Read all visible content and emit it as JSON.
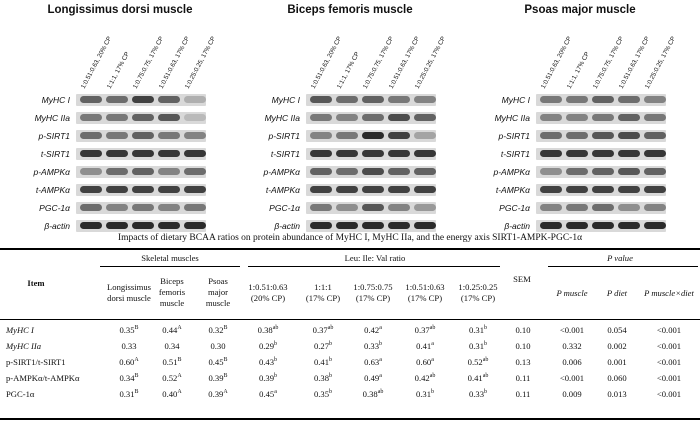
{
  "panels": [
    {
      "title": "Longissimus dorsi muscle",
      "lanes": [
        "1:0.51:0.63, 20% CP",
        "1:1:1, 17% CP",
        "1:0.75:0.75, 17% CP",
        "1:0.51:0.63, 17% CP",
        "1:0.25:0.25, 17% CP"
      ],
      "labels": [
        "MyHC I",
        "MyHC IIa",
        "p-SIRT1",
        "t-SIRT1",
        "p-AMPKα",
        "t-AMPKα",
        "PGC-1α",
        "β-actin"
      ],
      "band_intensity": [
        [
          0.6,
          0.55,
          0.75,
          0.6,
          0.25
        ],
        [
          0.5,
          0.5,
          0.6,
          0.65,
          0.2
        ],
        [
          0.55,
          0.5,
          0.6,
          0.5,
          0.45
        ],
        [
          0.8,
          0.8,
          0.8,
          0.8,
          0.8
        ],
        [
          0.4,
          0.55,
          0.6,
          0.45,
          0.55
        ],
        [
          0.75,
          0.75,
          0.75,
          0.75,
          0.75
        ],
        [
          0.55,
          0.45,
          0.5,
          0.45,
          0.5
        ],
        [
          0.85,
          0.85,
          0.85,
          0.85,
          0.85
        ]
      ]
    },
    {
      "title": "Biceps femoris muscle",
      "lanes": [
        "1:0.51:0.63, 20% CP",
        "1:1:1, 17% CP",
        "1:0.75:0.75, 17% CP",
        "1:0.51:0.63, 17% CP",
        "1:0.25:0.25, 17% CP"
      ],
      "labels": [
        "MyHC I",
        "MyHC IIa",
        "p-SIRT1",
        "t-SIRT1",
        "p-AMPKα",
        "t-AMPKα",
        "PGC-1α",
        "β-actin"
      ],
      "band_intensity": [
        [
          0.65,
          0.55,
          0.6,
          0.5,
          0.45
        ],
        [
          0.5,
          0.45,
          0.55,
          0.7,
          0.6
        ],
        [
          0.45,
          0.5,
          0.85,
          0.75,
          0.3
        ],
        [
          0.8,
          0.8,
          0.8,
          0.8,
          0.8
        ],
        [
          0.6,
          0.55,
          0.7,
          0.6,
          0.6
        ],
        [
          0.75,
          0.75,
          0.75,
          0.75,
          0.75
        ],
        [
          0.5,
          0.4,
          0.65,
          0.45,
          0.35
        ],
        [
          0.85,
          0.85,
          0.85,
          0.85,
          0.85
        ]
      ]
    },
    {
      "title": "Psoas major muscle",
      "lanes": [
        "1:0.51:0.63, 20% CP",
        "1:1:1, 17% CP",
        "1:0.75:0.75, 17% CP",
        "1:0.51:0.63, 17% CP",
        "1:0.25:0.25, 17% CP"
      ],
      "labels": [
        "MyHC I",
        "MyHC IIa",
        "p-SIRT1",
        "t-SIRT1",
        "p-AMPKα",
        "t-AMPKα",
        "PGC-1α",
        "β-actin"
      ],
      "band_intensity": [
        [
          0.5,
          0.5,
          0.6,
          0.55,
          0.45
        ],
        [
          0.45,
          0.45,
          0.5,
          0.6,
          0.5
        ],
        [
          0.55,
          0.55,
          0.65,
          0.7,
          0.6
        ],
        [
          0.8,
          0.8,
          0.8,
          0.8,
          0.8
        ],
        [
          0.4,
          0.55,
          0.6,
          0.65,
          0.6
        ],
        [
          0.75,
          0.75,
          0.75,
          0.75,
          0.75
        ],
        [
          0.45,
          0.5,
          0.55,
          0.4,
          0.45
        ],
        [
          0.85,
          0.85,
          0.85,
          0.85,
          0.85
        ]
      ]
    }
  ],
  "table": {
    "caption": "Impacts of dietary BCAA ratios on protein abundance of MyHC I, MyHC IIa, and the energy axis SIRT1-AMPK-PGC-1α",
    "item_header": "Item",
    "group_headers": {
      "skeletal": "Skeletal muscles",
      "ratio": "Leu: Ile: Val ratio",
      "sem": "SEM",
      "pvalue": "P value"
    },
    "muscle_headers": [
      [
        "Longissimus",
        "dorsi muscle"
      ],
      [
        "Biceps",
        "femoris",
        "muscle"
      ],
      [
        "Psoas",
        "major",
        "muscle"
      ]
    ],
    "ratio_headers": [
      [
        "1:0.51:0.63",
        "(20% CP)"
      ],
      [
        "1:1:1",
        "(17% CP)"
      ],
      [
        "1:0.75:0.75",
        "(17% CP)"
      ],
      [
        "1:0.51:0.63",
        "(17% CP)"
      ],
      [
        "1:0.25:0.25",
        "(17% CP)"
      ]
    ],
    "p_headers": [
      "P muscle",
      "P diet",
      "P muscle×diet"
    ],
    "rows": [
      {
        "item": "MyHC I",
        "italic": true,
        "muscle": [
          [
            "0.35",
            "B"
          ],
          [
            "0.44",
            "A"
          ],
          [
            "0.32",
            "B"
          ]
        ],
        "ratio": [
          [
            "0.38",
            "ab"
          ],
          [
            "0.37",
            "ab"
          ],
          [
            "0.42",
            "a"
          ],
          [
            "0.37",
            "ab"
          ],
          [
            "0.31",
            "b"
          ]
        ],
        "sem": "0.10",
        "p": [
          "<0.001",
          "0.054",
          "<0.001"
        ]
      },
      {
        "item": "MyHC IIa",
        "italic": true,
        "muscle": [
          [
            "0.33",
            ""
          ],
          [
            "0.34",
            ""
          ],
          [
            "0.30",
            ""
          ]
        ],
        "ratio": [
          [
            "0.29",
            "b"
          ],
          [
            "0.27",
            "b"
          ],
          [
            "0.33",
            "b"
          ],
          [
            "0.41",
            "a"
          ],
          [
            "0.31",
            "b"
          ]
        ],
        "sem": "0.10",
        "p": [
          "0.332",
          "0.002",
          "<0.001"
        ]
      },
      {
        "item": "p-SIRT1/t-SIRT1",
        "italic": false,
        "muscle": [
          [
            "0.60",
            "A"
          ],
          [
            "0.51",
            "B"
          ],
          [
            "0.45",
            "B"
          ]
        ],
        "ratio": [
          [
            "0.43",
            "b"
          ],
          [
            "0.41",
            "b"
          ],
          [
            "0.63",
            "a"
          ],
          [
            "0.60",
            "a"
          ],
          [
            "0.52",
            "ab"
          ]
        ],
        "sem": "0.13",
        "p": [
          "0.006",
          "0.001",
          "<0.001"
        ]
      },
      {
        "item": "p-AMPKα/t-AMPKα",
        "italic": false,
        "muscle": [
          [
            "0.34",
            "B"
          ],
          [
            "0.52",
            "A"
          ],
          [
            "0.39",
            "B"
          ]
        ],
        "ratio": [
          [
            "0.39",
            "b"
          ],
          [
            "0.38",
            "b"
          ],
          [
            "0.49",
            "a"
          ],
          [
            "0.42",
            "ab"
          ],
          [
            "0.41",
            "ab"
          ]
        ],
        "sem": "0.11",
        "p": [
          "<0.001",
          "0.060",
          "<0.001"
        ]
      },
      {
        "item": "PGC-1α",
        "italic": false,
        "muscle": [
          [
            "0.31",
            "B"
          ],
          [
            "0.40",
            "A"
          ],
          [
            "0.39",
            "A"
          ]
        ],
        "ratio": [
          [
            "0.45",
            "a"
          ],
          [
            "0.35",
            "b"
          ],
          [
            "0.38",
            "ab"
          ],
          [
            "0.31",
            "b"
          ],
          [
            "0.33",
            "b"
          ]
        ],
        "sem": "0.11",
        "p": [
          "0.009",
          "0.013",
          "<0.001"
        ]
      }
    ]
  }
}
